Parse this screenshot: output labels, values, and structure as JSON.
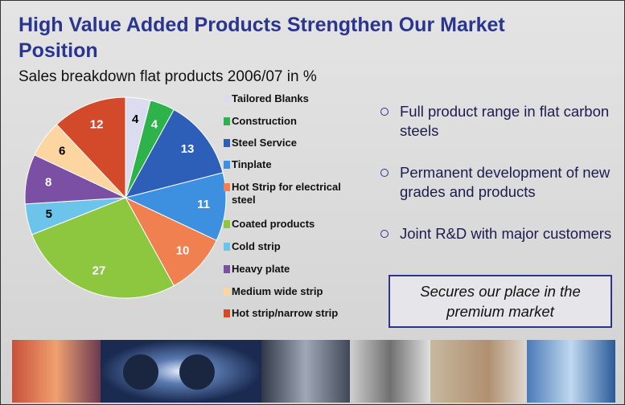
{
  "chart_data": {
    "type": "pie",
    "title": "High Value Added Products Strengthen Our Market Position",
    "subtitle": "Sales breakdown flat products 2006/07 in %",
    "categories": [
      "Tailored Blanks",
      "Construction",
      "Steel Service",
      "Tinplate",
      "Hot Strip for electrical steel",
      "Coated products",
      "Cold strip",
      "Heavy plate",
      "Medium wide strip",
      "Hot strip/narrow strip"
    ],
    "values": [
      4,
      4,
      13,
      11,
      10,
      27,
      5,
      8,
      6,
      12
    ],
    "colors": [
      "#dcdcf0",
      "#2db34a",
      "#2e5fb8",
      "#3d8fe0",
      "#f08050",
      "#8dc63f",
      "#6cc4ea",
      "#7b4fa3",
      "#fcd5a0",
      "#d24a2a"
    ]
  },
  "bullets": [
    "Full product range in flat carbon steels",
    "Permanent development of new grades and products",
    "Joint R&D with major customers"
  ],
  "callout": "Secures our place in the premium market"
}
